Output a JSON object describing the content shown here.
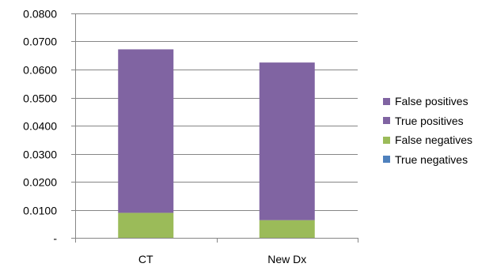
{
  "chart_data": {
    "type": "bar",
    "stacked": true,
    "categories": [
      "CT",
      "New Dx"
    ],
    "series": [
      {
        "name": "True negatives",
        "color": "#4F81BD",
        "values": [
          0,
          0
        ]
      },
      {
        "name": "False negatives",
        "color": "#9BBB59",
        "values": [
          0.0089,
          0.0063
        ]
      },
      {
        "name": "True positives",
        "color": "#8064A2",
        "values": [
          0.0583,
          0.0562
        ]
      },
      {
        "name": "False positives",
        "color": "#8064A2",
        "values": [
          0,
          0
        ]
      }
    ],
    "legend_order": [
      "False positives",
      "True positives",
      "False negatives",
      "True negatives"
    ],
    "ylim": [
      0,
      0.08
    ],
    "yticks": [
      0,
      0.01,
      0.02,
      0.03,
      0.04,
      0.05,
      0.06,
      0.07,
      0.08
    ],
    "ytick_labels": [
      "-",
      "0.0100",
      "0.0200",
      "0.0300",
      "0.0400",
      "0.0500",
      "0.0600",
      "0.0700",
      "0.0800"
    ],
    "grid": true,
    "legend_position": "right",
    "title": "",
    "xlabel": "",
    "ylabel": ""
  }
}
